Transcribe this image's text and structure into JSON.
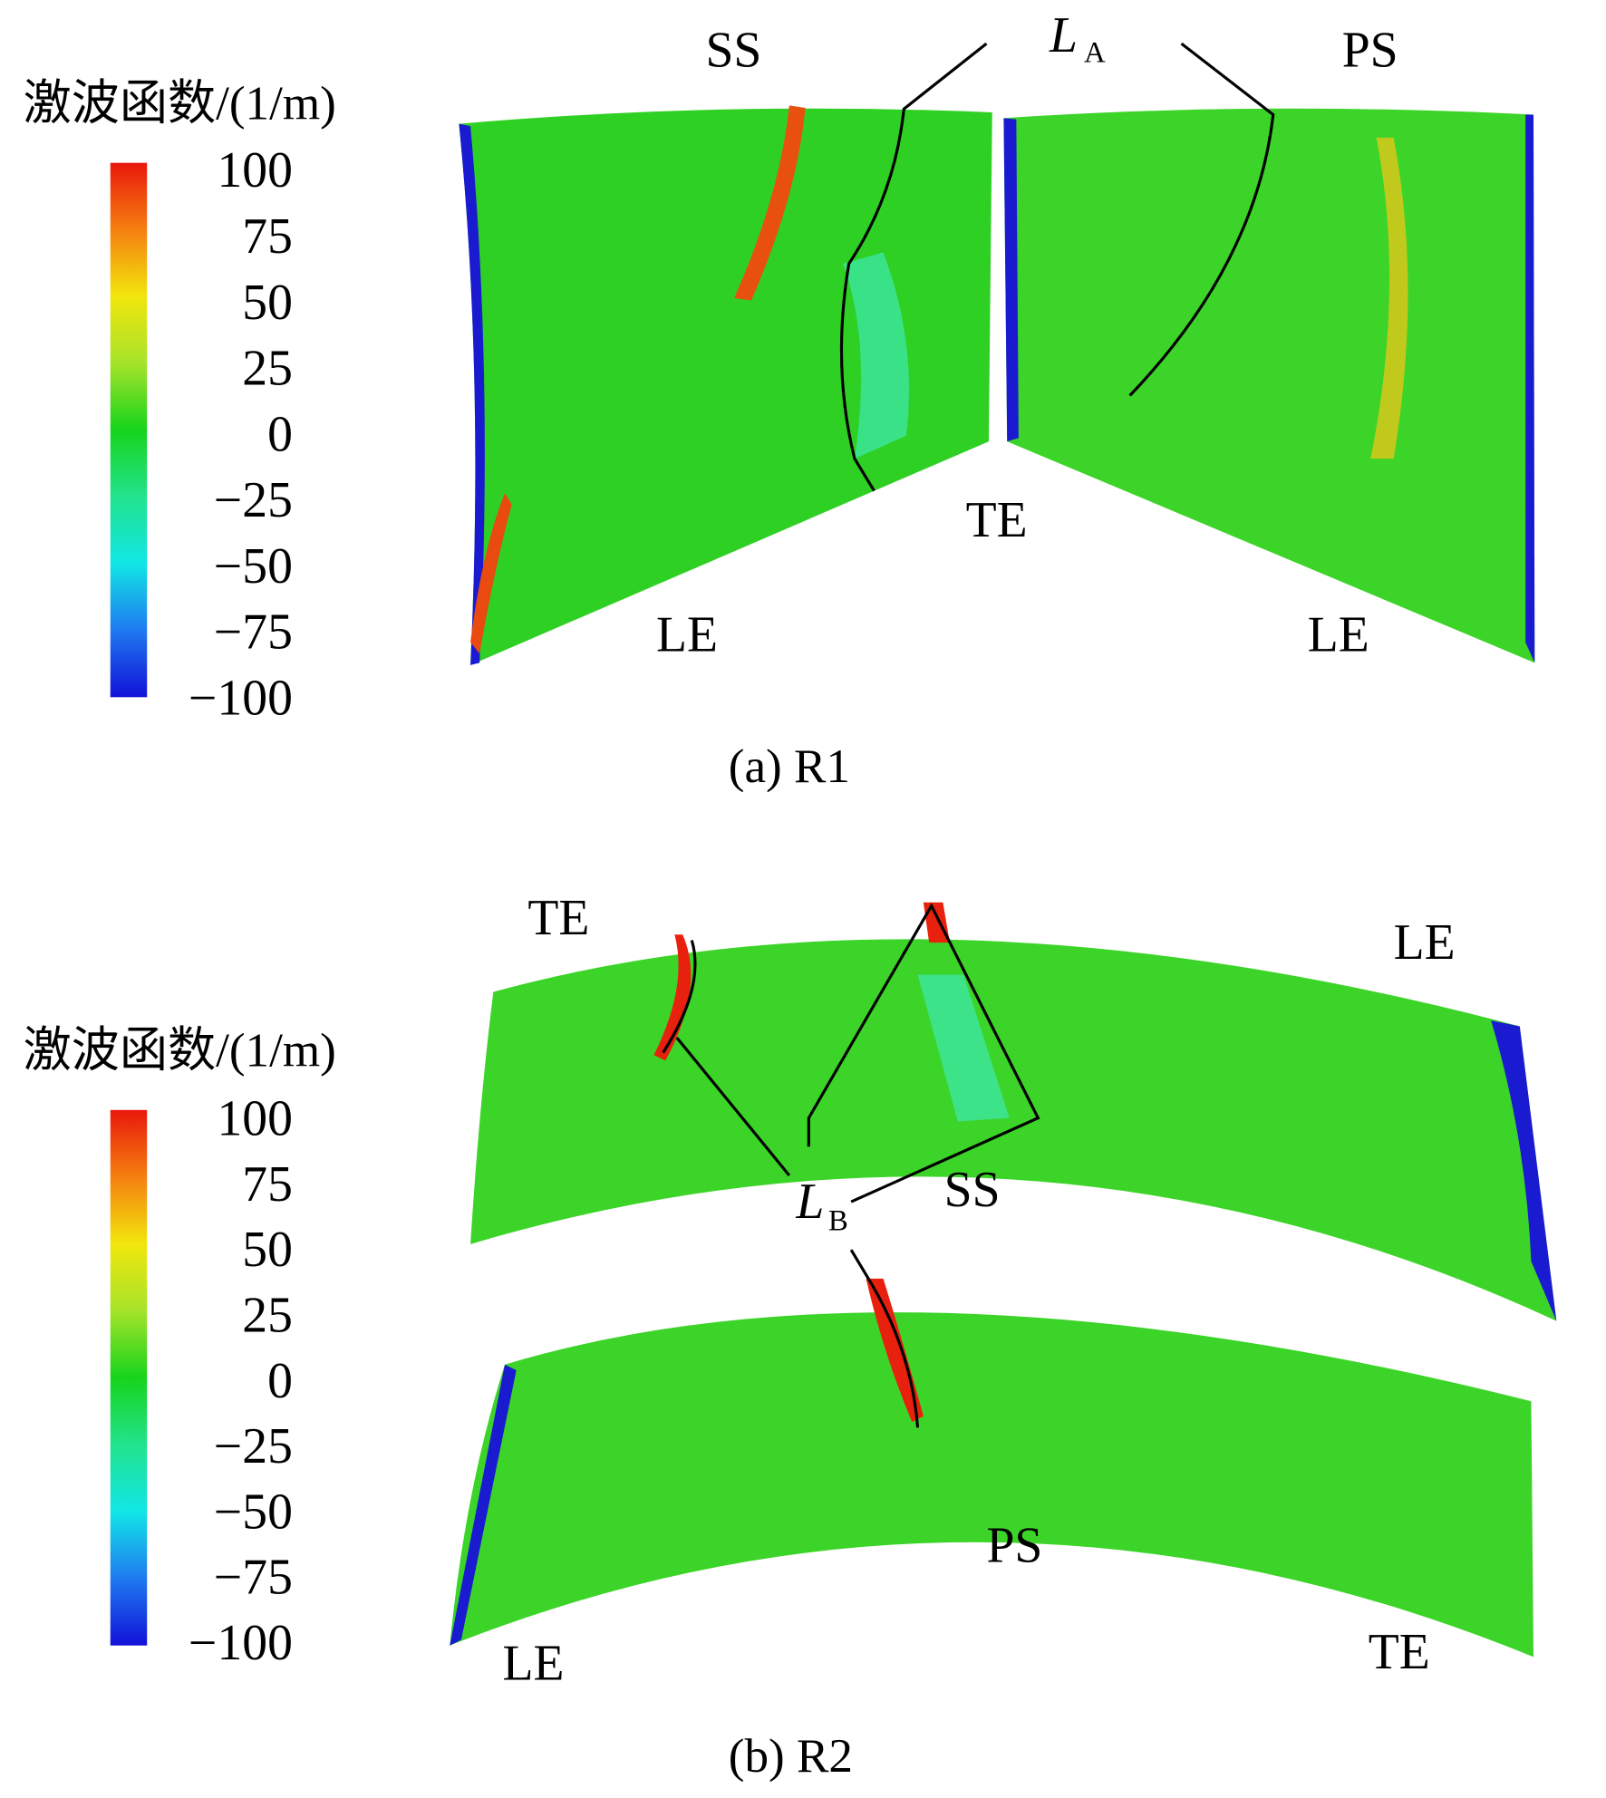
{
  "panels": [
    {
      "caption": "(a) R1",
      "colorbar": {
        "title": "激波函数/(1/m)",
        "ticks": [
          "100",
          "75",
          "50",
          "25",
          "0",
          "−25",
          "−50",
          "−75",
          "−100"
        ]
      },
      "labels": [
        "SS",
        "PS",
        "TE",
        "LE",
        "LE"
      ],
      "line_label": {
        "main": "L",
        "sub": "A"
      }
    },
    {
      "caption": "(b) R2",
      "colorbar": {
        "title": "激波函数/(1/m)",
        "ticks": [
          "100",
          "75",
          "50",
          "25",
          "0",
          "−25",
          "−50",
          "−75",
          "−100"
        ]
      },
      "labels": [
        "TE",
        "LE",
        "SS",
        "PS",
        "LE",
        "TE"
      ],
      "line_label": {
        "main": "L",
        "sub": "B"
      }
    }
  ]
}
